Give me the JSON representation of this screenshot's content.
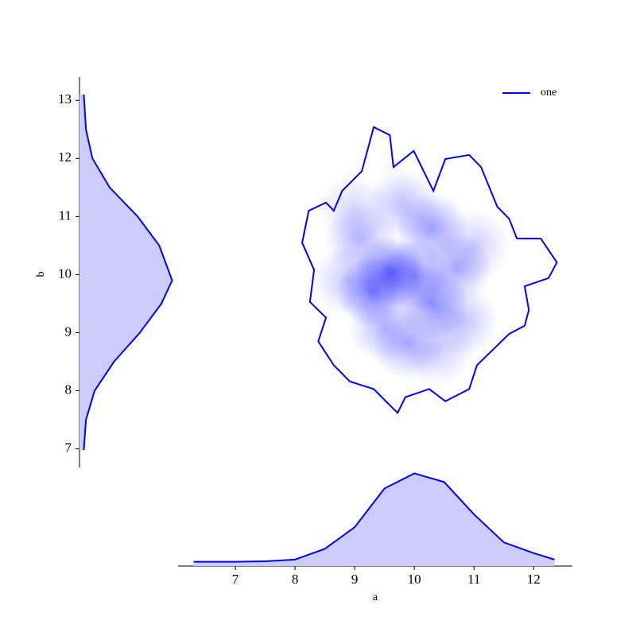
{
  "chart_data": [
    {
      "type": "density2d",
      "xlim": [
        6.04,
        12.65
      ],
      "ylim": [
        6.68,
        13.4
      ],
      "legend": "upper right",
      "series": [
        {
          "name": "one",
          "color": "#0000ff",
          "x": [
            8.12,
            8.23,
            8.52,
            8.65,
            8.79,
            9.12,
            9.32,
            9.59,
            9.65,
            9.99,
            10.32,
            10.52,
            10.92,
            11.12,
            11.39,
            11.59,
            11.72,
            12.12,
            12.39,
            12.25,
            11.85,
            11.92,
            11.85,
            11.59,
            11.39,
            11.05,
            10.92,
            10.52,
            10.25,
            9.85,
            9.72,
            9.59,
            9.32,
            8.92,
            8.65,
            8.39,
            8.52,
            8.25,
            8.32
          ],
          "y": [
            10.55,
            11.1,
            11.24,
            11.1,
            11.44,
            11.78,
            12.54,
            12.4,
            11.85,
            12.13,
            11.44,
            11.99,
            12.06,
            11.85,
            11.17,
            10.96,
            10.62,
            10.62,
            10.21,
            9.94,
            9.8,
            9.39,
            9.12,
            8.98,
            8.78,
            8.44,
            8.03,
            7.82,
            8.03,
            7.89,
            7.62,
            7.75,
            8.03,
            8.16,
            8.44,
            8.85,
            9.26,
            9.53,
            10.08
          ]
        }
      ],
      "density": {
        "x": [
          9.6,
          9.3,
          10.3,
          10.3,
          10.7,
          9.9,
          9.5,
          9.1,
          10.8,
          9.8,
          10.0,
          8.9,
          11.0,
          9.0,
          10.4
        ],
        "y": [
          10.05,
          9.7,
          9.5,
          10.8,
          10.1,
          8.8,
          9.1,
          10.6,
          9.2,
          11.2,
          10.0,
          9.9,
          10.5,
          11.1,
          8.7
        ],
        "values": [
          1.0,
          0.85,
          0.8,
          0.7,
          0.6,
          0.55,
          0.5,
          0.5,
          0.45,
          0.45,
          0.7,
          0.4,
          0.35,
          0.3,
          0.35
        ]
      }
    },
    {
      "type": "kde",
      "orientation": "vertical",
      "color": "#0000ff",
      "fill": "#ccccff",
      "ylabel": "b",
      "x": [
        6.98,
        7.5,
        8.0,
        8.5,
        9.0,
        9.5,
        9.9,
        10.5,
        11.0,
        11.5,
        12.0,
        12.5,
        13.1
      ],
      "values": [
        0.02,
        0.03,
        0.07,
        0.16,
        0.28,
        0.38,
        0.43,
        0.37,
        0.27,
        0.14,
        0.06,
        0.03,
        0.02
      ],
      "ylim": [
        6.68,
        13.4
      ],
      "yticks": [
        7,
        8,
        9,
        10,
        11,
        12,
        13
      ],
      "xlim": [
        0,
        0.45
      ]
    },
    {
      "type": "kde",
      "orientation": "horizontal",
      "color": "#0000ff",
      "fill": "#ccccff",
      "xlabel": "a",
      "x": [
        6.3,
        7.0,
        7.5,
        8.0,
        8.5,
        9.0,
        9.5,
        10.0,
        10.5,
        11.0,
        11.5,
        12.0,
        12.35
      ],
      "values": [
        0.02,
        0.02,
        0.022,
        0.03,
        0.08,
        0.18,
        0.36,
        0.43,
        0.39,
        0.24,
        0.11,
        0.06,
        0.03
      ],
      "xlim": [
        6.04,
        12.65
      ],
      "xticks": [
        7,
        8,
        9,
        10,
        11,
        12
      ],
      "ylim": [
        0,
        0.45
      ]
    }
  ]
}
